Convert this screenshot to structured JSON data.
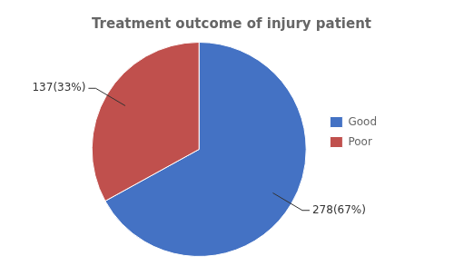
{
  "chart_data": {
    "type": "pie",
    "title": "Treatment outcome of injury patient",
    "categories": [
      "Good",
      "Poor"
    ],
    "values": [
      278,
      137
    ],
    "colors": [
      "#4472C4",
      "#C0504D"
    ],
    "value_labels": [
      "278(67%)",
      "137(33%)"
    ],
    "data_labels": true,
    "legend": "right"
  }
}
